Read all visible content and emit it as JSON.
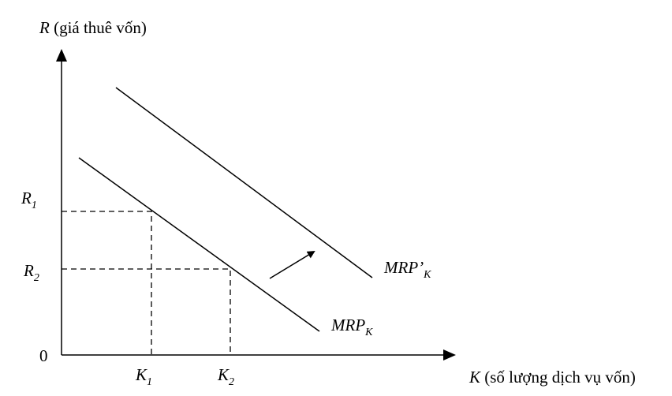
{
  "y_axis": {
    "symbol": "R",
    "text": "(giá thuê vốn)"
  },
  "x_axis": {
    "symbol": "K",
    "text": "(số lượng dịch vụ vốn)"
  },
  "origin": "0",
  "y_labels": [
    {
      "base": "R",
      "sub": "1"
    },
    {
      "base": "R",
      "sub": "2"
    }
  ],
  "x_labels": [
    {
      "base": "K",
      "sub": "1"
    },
    {
      "base": "K",
      "sub": "2"
    }
  ],
  "curves": [
    {
      "base": "MRP’",
      "sub": "K"
    },
    {
      "base": "MRP",
      "sub": "K"
    }
  ]
}
